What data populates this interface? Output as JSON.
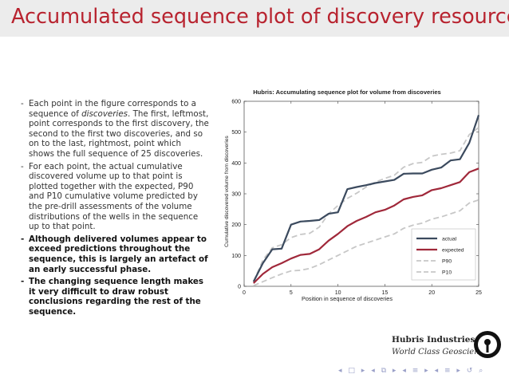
{
  "slide": {
    "title": "Accumulated sequence plot of discovery resources",
    "bullets": [
      {
        "pre": "Each point in the figure corresponds to a sequence of ",
        "em": "discoveries",
        "post": ". The first, leftmost, point corresponds to the first discovery, the second to the first two discoveries, and so on to the last, rightmost, point which shows the full sequence of 25 discoveries.",
        "bold": false
      },
      {
        "pre": "For each point, the actual cumulative discovered volume up to that point is plotted together with the expected, P90 and P10 cumulative volume predicted by the pre-drill assessments of the volume distributions of the wells in the sequence up to that point.",
        "em": "",
        "post": "",
        "bold": false
      },
      {
        "pre": "Although delivered volumes appear to exceed predictions throughout the sequence, this is largely an artefact of an early successful phase.",
        "em": "",
        "post": "",
        "bold": true
      },
      {
        "pre": "The changing sequence length makes it very difficult to draw robust conclusions regarding the rest of the sequence.",
        "em": "",
        "post": "",
        "bold": true
      }
    ]
  },
  "logo": {
    "name": "Hubris Industries",
    "tagline": "World Class Geoscience"
  },
  "chart_data": {
    "type": "line",
    "title": "Hubris: Accumulating sequence plot for volume from discoveries",
    "xlabel": "Position in sequence of discoveries",
    "ylabel": "Cumulative discovered volume from discoveries",
    "xlim": [
      0,
      25
    ],
    "ylim": [
      0,
      600
    ],
    "xticks": [
      0,
      5,
      10,
      15,
      20,
      25
    ],
    "yticks": [
      0,
      100,
      200,
      300,
      400,
      500,
      600
    ],
    "grid": false,
    "legend": "lower-right",
    "x": [
      1,
      2,
      3,
      4,
      5,
      6,
      7,
      8,
      9,
      10,
      11,
      12,
      13,
      14,
      15,
      16,
      17,
      18,
      19,
      20,
      21,
      22,
      23,
      24,
      25
    ],
    "series": [
      {
        "name": "actual",
        "color": "#3b4a5e",
        "dash": "solid",
        "values": [
          15,
          75,
          120,
          122,
          200,
          210,
          212,
          215,
          235,
          240,
          315,
          322,
          328,
          335,
          340,
          345,
          365,
          366,
          366,
          378,
          385,
          408,
          412,
          465,
          555
        ]
      },
      {
        "name": "expected",
        "color": "#a0283a",
        "dash": "solid",
        "values": [
          10,
          40,
          62,
          75,
          90,
          102,
          105,
          120,
          148,
          170,
          195,
          212,
          225,
          240,
          248,
          262,
          282,
          290,
          295,
          312,
          318,
          328,
          338,
          370,
          382
        ]
      },
      {
        "name": "P90",
        "color": "#c7c7c7",
        "dash": "dashed",
        "values": [
          15,
          85,
          125,
          135,
          158,
          168,
          172,
          192,
          235,
          262,
          285,
          302,
          322,
          338,
          350,
          360,
          386,
          398,
          402,
          422,
          428,
          432,
          440,
          492,
          515
        ]
      },
      {
        "name": "P10",
        "color": "#c7c7c7",
        "dash": "dashed",
        "values": [
          2,
          15,
          28,
          40,
          50,
          52,
          58,
          70,
          85,
          100,
          115,
          130,
          140,
          150,
          160,
          170,
          188,
          198,
          205,
          218,
          225,
          235,
          245,
          270,
          280
        ]
      }
    ]
  }
}
